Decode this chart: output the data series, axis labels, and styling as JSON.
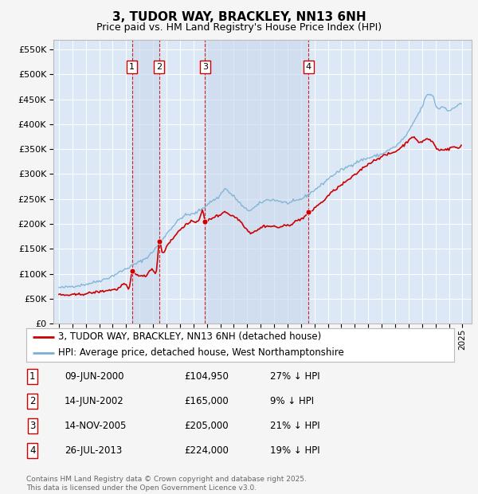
{
  "title": "3, TUDOR WAY, BRACKLEY, NN13 6NH",
  "subtitle": "Price paid vs. HM Land Registry's House Price Index (HPI)",
  "ylim": [
    0,
    570000
  ],
  "yticks": [
    0,
    50000,
    100000,
    150000,
    200000,
    250000,
    300000,
    350000,
    400000,
    450000,
    500000,
    550000
  ],
  "xlim_left": 1994.6,
  "xlim_right": 2025.7,
  "plot_bg_color": "#dce8f5",
  "fig_bg_color": "#f5f5f5",
  "sale_years": [
    2000.44,
    2002.45,
    2005.87,
    2013.57
  ],
  "sale_values": [
    104950,
    165000,
    205000,
    224000
  ],
  "sale_labels": [
    "1",
    "2",
    "3",
    "4"
  ],
  "table_rows": [
    {
      "num": "1",
      "date": "09-JUN-2000",
      "price": "£104,950",
      "hpi": "27% ↓ HPI"
    },
    {
      "num": "2",
      "date": "14-JUN-2002",
      "price": "£165,000",
      "hpi": "9% ↓ HPI"
    },
    {
      "num": "3",
      "date": "14-NOV-2005",
      "price": "£205,000",
      "hpi": "21% ↓ HPI"
    },
    {
      "num": "4",
      "date": "26-JUL-2013",
      "price": "£224,000",
      "hpi": "19% ↓ HPI"
    }
  ],
  "footer": "Contains HM Land Registry data © Crown copyright and database right 2025.\nThis data is licensed under the Open Government Licence v3.0.",
  "legend_house": "3, TUDOR WAY, BRACKLEY, NN13 6NH (detached house)",
  "legend_hpi": "HPI: Average price, detached house, West Northamptonshire",
  "red_color": "#cc0000",
  "blue_color": "#7ab0d4",
  "shade_color": "#c8d8ec"
}
